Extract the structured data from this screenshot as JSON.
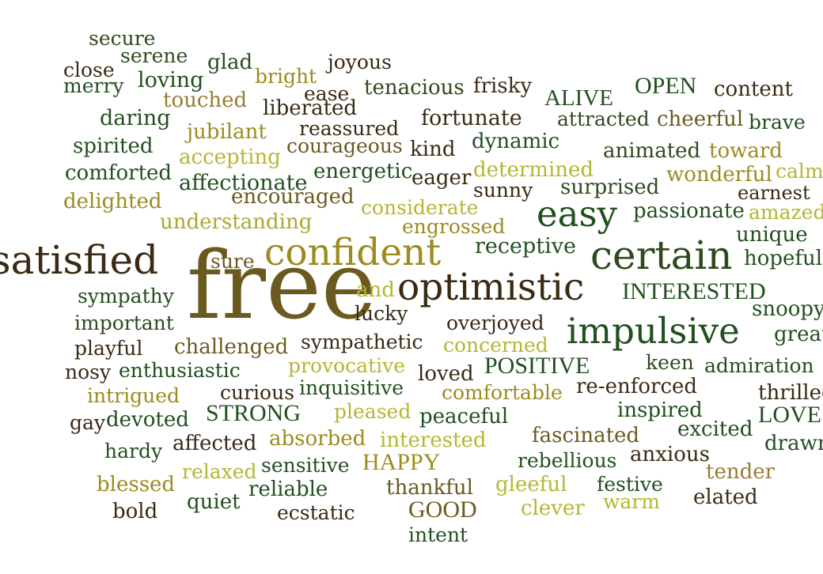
{
  "words": [
    {
      "text": "secure",
      "color": "#2e4a1e"
    },
    {
      "text": "serene",
      "color": "#2e4a1e"
    },
    {
      "text": "close",
      "color": "#3a2a14"
    },
    {
      "text": "merry",
      "color": "#224f1f"
    },
    {
      "text": "loving",
      "color": "#224f1f"
    },
    {
      "text": "glad",
      "color": "#2e4a1e"
    },
    {
      "text": "bright",
      "color": "#9c8b1f"
    },
    {
      "text": "joyous",
      "color": "#3a2a14"
    },
    {
      "text": "ease",
      "color": "#3a2a14"
    },
    {
      "text": "tenacious",
      "color": "#2e4a1e"
    },
    {
      "text": "frisky",
      "color": "#3a2a14"
    },
    {
      "text": "OPEN",
      "color": "#224f1f"
    },
    {
      "text": "content",
      "color": "#3a2a14"
    },
    {
      "text": "ALIVE",
      "color": "#224f1f"
    },
    {
      "text": "touched",
      "color": "#9a7a35"
    },
    {
      "text": "liberated",
      "color": "#3a2a14"
    },
    {
      "text": "daring",
      "color": "#224f1f"
    },
    {
      "text": "fortunate",
      "color": "#3a2a14"
    },
    {
      "text": "attracted",
      "color": "#2e4a1e"
    },
    {
      "text": "cheerful",
      "color": "#6b5a1f"
    },
    {
      "text": "brave",
      "color": "#224f1f"
    },
    {
      "text": "jubilant",
      "color": "#9c8b1f"
    },
    {
      "text": "reassured",
      "color": "#3a2a14"
    },
    {
      "text": "spirited",
      "color": "#224f1f"
    },
    {
      "text": "courageous",
      "color": "#6b5a1f"
    },
    {
      "text": "kind",
      "color": "#3a2a14"
    },
    {
      "text": "dynamic",
      "color": "#224f1f"
    },
    {
      "text": "animated",
      "color": "#2e4a1e"
    },
    {
      "text": "toward",
      "color": "#9c8b1f"
    },
    {
      "text": "accepting",
      "color": "#b5b634"
    },
    {
      "text": "comforted",
      "color": "#224f1f"
    },
    {
      "text": "energetic",
      "color": "#224f1f"
    },
    {
      "text": "eager",
      "color": "#3a2a14"
    },
    {
      "text": "determined",
      "color": "#b5b634"
    },
    {
      "text": "wonderful",
      "color": "#9c8b1f"
    },
    {
      "text": "calm",
      "color": "#b5b634"
    },
    {
      "text": "affectionate",
      "color": "#224f1f"
    },
    {
      "text": "surprised",
      "color": "#2e4a1e"
    },
    {
      "text": "sunny",
      "color": "#3a2a14"
    },
    {
      "text": "earnest",
      "color": "#3a2a14"
    },
    {
      "text": "delighted",
      "color": "#9c8b1f"
    },
    {
      "text": "encouraged",
      "color": "#6b5a1f"
    },
    {
      "text": "considerate",
      "color": "#b5b634"
    },
    {
      "text": "easy",
      "color": "#224f1f"
    },
    {
      "text": "passionate",
      "color": "#224f1f"
    },
    {
      "text": "amazed",
      "color": "#b5b634"
    },
    {
      "text": "understanding",
      "color": "#a8a83a"
    },
    {
      "text": "engrossed",
      "color": "#9c8b1f"
    },
    {
      "text": "unique",
      "color": "#224f1f"
    },
    {
      "text": "satisfied",
      "color": "#3a2a14"
    },
    {
      "text": "sure",
      "color": "#6b5a1f"
    },
    {
      "text": "confident",
      "color": "#9c8b1f"
    },
    {
      "text": "receptive",
      "color": "#224f1f"
    },
    {
      "text": "certain",
      "color": "#2e4a1e"
    },
    {
      "text": "hopeful",
      "color": "#224f1f"
    },
    {
      "text": "free",
      "color": "#6b5a1f"
    },
    {
      "text": "and",
      "color": "#b5b634"
    },
    {
      "text": "optimistic",
      "color": "#3a2a14"
    },
    {
      "text": "INTERESTED",
      "color": "#224f1f"
    },
    {
      "text": "sympathy",
      "color": "#224f1f"
    },
    {
      "text": "lucky",
      "color": "#3a2a14"
    },
    {
      "text": "snoopy",
      "color": "#224f1f"
    },
    {
      "text": "important",
      "color": "#2e4a1e"
    },
    {
      "text": "overjoyed",
      "color": "#3a2a14"
    },
    {
      "text": "impulsive",
      "color": "#224f1f"
    },
    {
      "text": "great",
      "color": "#224f1f"
    },
    {
      "text": "playful",
      "color": "#3a2a14"
    },
    {
      "text": "challenged",
      "color": "#6b5a1f"
    },
    {
      "text": "sympathetic",
      "color": "#3a2a14"
    },
    {
      "text": "concerned",
      "color": "#b5b634"
    },
    {
      "text": "nosy",
      "color": "#3a2a14"
    },
    {
      "text": "enthusiastic",
      "color": "#224f1f"
    },
    {
      "text": "provocative",
      "color": "#b5b634"
    },
    {
      "text": "loved",
      "color": "#3a2a14"
    },
    {
      "text": "POSITIVE",
      "color": "#224f1f"
    },
    {
      "text": "keen",
      "color": "#2e4a1e"
    },
    {
      "text": "admiration",
      "color": "#224f1f"
    },
    {
      "text": "intrigued",
      "color": "#9c8b1f"
    },
    {
      "text": "curious",
      "color": "#3a2a14"
    },
    {
      "text": "inquisitive",
      "color": "#224f1f"
    },
    {
      "text": "comfortable",
      "color": "#9c8b1f"
    },
    {
      "text": "re-enforced",
      "color": "#3a2a14"
    },
    {
      "text": "thrilled",
      "color": "#3a2a14"
    },
    {
      "text": "gay",
      "color": "#3a2a14"
    },
    {
      "text": "devoted",
      "color": "#224f1f"
    },
    {
      "text": "STRONG",
      "color": "#224f1f"
    },
    {
      "text": "pleased",
      "color": "#b5b634"
    },
    {
      "text": "peaceful",
      "color": "#224f1f"
    },
    {
      "text": "inspired",
      "color": "#224f1f"
    },
    {
      "text": "LOVE",
      "color": "#224f1f"
    },
    {
      "text": "hardy",
      "color": "#224f1f"
    },
    {
      "text": "affected",
      "color": "#3a2a14"
    },
    {
      "text": "absorbed",
      "color": "#9c8b1f"
    },
    {
      "text": "interested",
      "color": "#b5b634"
    },
    {
      "text": "fascinated",
      "color": "#6b5a1f"
    },
    {
      "text": "excited",
      "color": "#224f1f"
    },
    {
      "text": "drawn",
      "color": "#224f1f"
    },
    {
      "text": "relaxed",
      "color": "#b5b634"
    },
    {
      "text": "sensitive",
      "color": "#224f1f"
    },
    {
      "text": "HAPPY",
      "color": "#9c8b1f"
    },
    {
      "text": "rebellious",
      "color": "#224f1f"
    },
    {
      "text": "anxious",
      "color": "#3a2a14"
    },
    {
      "text": "blessed",
      "color": "#9c8b1f"
    },
    {
      "text": "reliable",
      "color": "#224f1f"
    },
    {
      "text": "thankful",
      "color": "#6b5a1f"
    },
    {
      "text": "gleeful",
      "color": "#b5b634"
    },
    {
      "text": "festive",
      "color": "#224f1f"
    },
    {
      "text": "tender",
      "color": "#9a7a35"
    },
    {
      "text": "bold",
      "color": "#3a2a14"
    },
    {
      "text": "quiet",
      "color": "#224f1f"
    },
    {
      "text": "ecstatic",
      "color": "#3a2a14"
    },
    {
      "text": "GOOD",
      "color": "#6b5a1f"
    },
    {
      "text": "clever",
      "color": "#b5b634"
    },
    {
      "text": "warm",
      "color": "#b5b634"
    },
    {
      "text": "elated",
      "color": "#3a2a14"
    },
    {
      "text": "intent",
      "color": "#224f1f"
    }
  ]
}
